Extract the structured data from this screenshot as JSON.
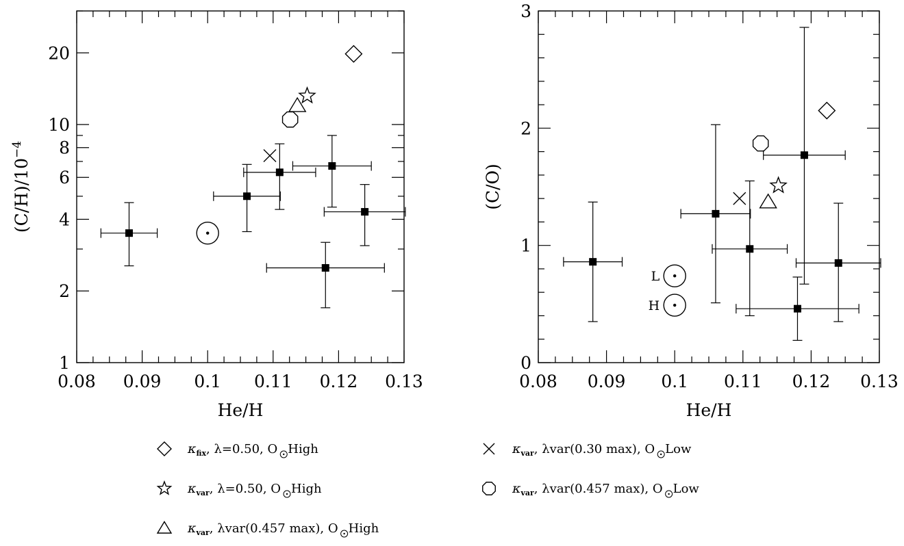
{
  "chart_data": [
    {
      "type": "scatter",
      "panel": "left",
      "xlabel": "He/H",
      "ylabel": "(C/H)/10",
      "ylabel_exponent": "−4",
      "y_scale": "log",
      "xlim": [
        0.08,
        0.13
      ],
      "ylim": [
        1,
        30
      ],
      "x_ticks": [
        0.08,
        0.09,
        0.1,
        0.11,
        0.12,
        0.13
      ],
      "x_tick_labels": [
        "0.08",
        "0.09",
        "0.1",
        "0.11",
        "0.12",
        "0.13"
      ],
      "y_ticks": [
        1,
        2,
        4,
        6,
        8,
        10,
        20
      ],
      "y_tick_labels": [
        "1",
        "2",
        "4",
        "6",
        "8",
        "10",
        "20"
      ],
      "observations": [
        {
          "x": 0.088,
          "y": 3.5,
          "xerr": 0.0043,
          "ylo": 2.55,
          "yhi": 4.7
        },
        {
          "x": 0.106,
          "y": 5.0,
          "xerr": 0.0051,
          "ylo": 3.55,
          "yhi": 6.8
        },
        {
          "x": 0.111,
          "y": 6.3,
          "xerr": 0.0055,
          "ylo": 4.4,
          "yhi": 8.3
        },
        {
          "x": 0.119,
          "y": 6.7,
          "xerr": 0.006,
          "ylo": 4.5,
          "yhi": 9.0
        },
        {
          "x": 0.124,
          "y": 4.3,
          "xerr": 0.0062,
          "ylo": 3.1,
          "yhi": 5.6
        },
        {
          "x": 0.118,
          "y": 2.5,
          "xerr": 0.009,
          "ylo": 1.7,
          "yhi": 3.2
        }
      ],
      "models": [
        {
          "marker": "diamond",
          "x": 0.1223,
          "y": 19.8
        },
        {
          "marker": "star",
          "x": 0.1152,
          "y": 13.2
        },
        {
          "marker": "triangle",
          "x": 0.1137,
          "y": 12.0
        },
        {
          "marker": "octagon",
          "x": 0.1126,
          "y": 10.5
        },
        {
          "marker": "cross",
          "x": 0.1095,
          "y": 7.4
        }
      ],
      "sun": [
        {
          "x": 0.1,
          "y": 3.5,
          "label": ""
        }
      ]
    },
    {
      "type": "scatter",
      "panel": "right",
      "xlabel": "He/H",
      "ylabel": "(C/O)",
      "y_scale": "linear",
      "xlim": [
        0.08,
        0.13
      ],
      "ylim": [
        0,
        3
      ],
      "x_ticks": [
        0.08,
        0.09,
        0.1,
        0.11,
        0.12,
        0.13
      ],
      "x_tick_labels": [
        "0.08",
        "0.09",
        "0.1",
        "0.11",
        "0.12",
        "0.13"
      ],
      "y_ticks": [
        0,
        1,
        2,
        3
      ],
      "y_tick_labels": [
        "0",
        "1",
        "2",
        "3"
      ],
      "observations": [
        {
          "x": 0.088,
          "y": 0.86,
          "xerr": 0.0043,
          "ylo": 0.35,
          "yhi": 1.37
        },
        {
          "x": 0.106,
          "y": 1.27,
          "xerr": 0.0051,
          "ylo": 0.51,
          "yhi": 2.03
        },
        {
          "x": 0.111,
          "y": 0.97,
          "xerr": 0.0055,
          "ylo": 0.4,
          "yhi": 1.55
        },
        {
          "x": 0.119,
          "y": 1.77,
          "xerr": 0.006,
          "ylo": 0.67,
          "yhi": 2.86
        },
        {
          "x": 0.124,
          "y": 0.85,
          "xerr": 0.0062,
          "ylo": 0.35,
          "yhi": 1.36
        },
        {
          "x": 0.118,
          "y": 0.46,
          "xerr": 0.009,
          "ylo": 0.19,
          "yhi": 0.73
        }
      ],
      "models": [
        {
          "marker": "diamond",
          "x": 0.1223,
          "y": 2.15
        },
        {
          "marker": "octagon",
          "x": 0.1126,
          "y": 1.87
        },
        {
          "marker": "star",
          "x": 0.1152,
          "y": 1.51
        },
        {
          "marker": "cross",
          "x": 0.1095,
          "y": 1.4
        },
        {
          "marker": "triangle",
          "x": 0.1137,
          "y": 1.37
        }
      ],
      "sun": [
        {
          "x": 0.1,
          "y": 0.74,
          "label": "L"
        },
        {
          "x": 0.1,
          "y": 0.49,
          "label": "H"
        }
      ]
    }
  ],
  "legend": [
    {
      "marker": "diamond",
      "kappa_sub": "fix",
      "text": "λ=0.50,  O",
      "suffix": " High"
    },
    {
      "marker": "star",
      "kappa_sub": "var",
      "text": "λ=0.50, O",
      "suffix": " High"
    },
    {
      "marker": "triangle",
      "kappa_sub": "var",
      "text": "λvar(0.457 max), O",
      "suffix": " High"
    },
    {
      "marker": "cross",
      "kappa_sub": "var",
      "text": "λvar(0.30 max), O",
      "suffix": " Low"
    },
    {
      "marker": "octagon",
      "kappa_sub": "var",
      "text": "λvar(0.457 max), O",
      "suffix": " Low"
    }
  ],
  "legend_symbols": {
    "kappa": "κ",
    "separator": ","
  }
}
